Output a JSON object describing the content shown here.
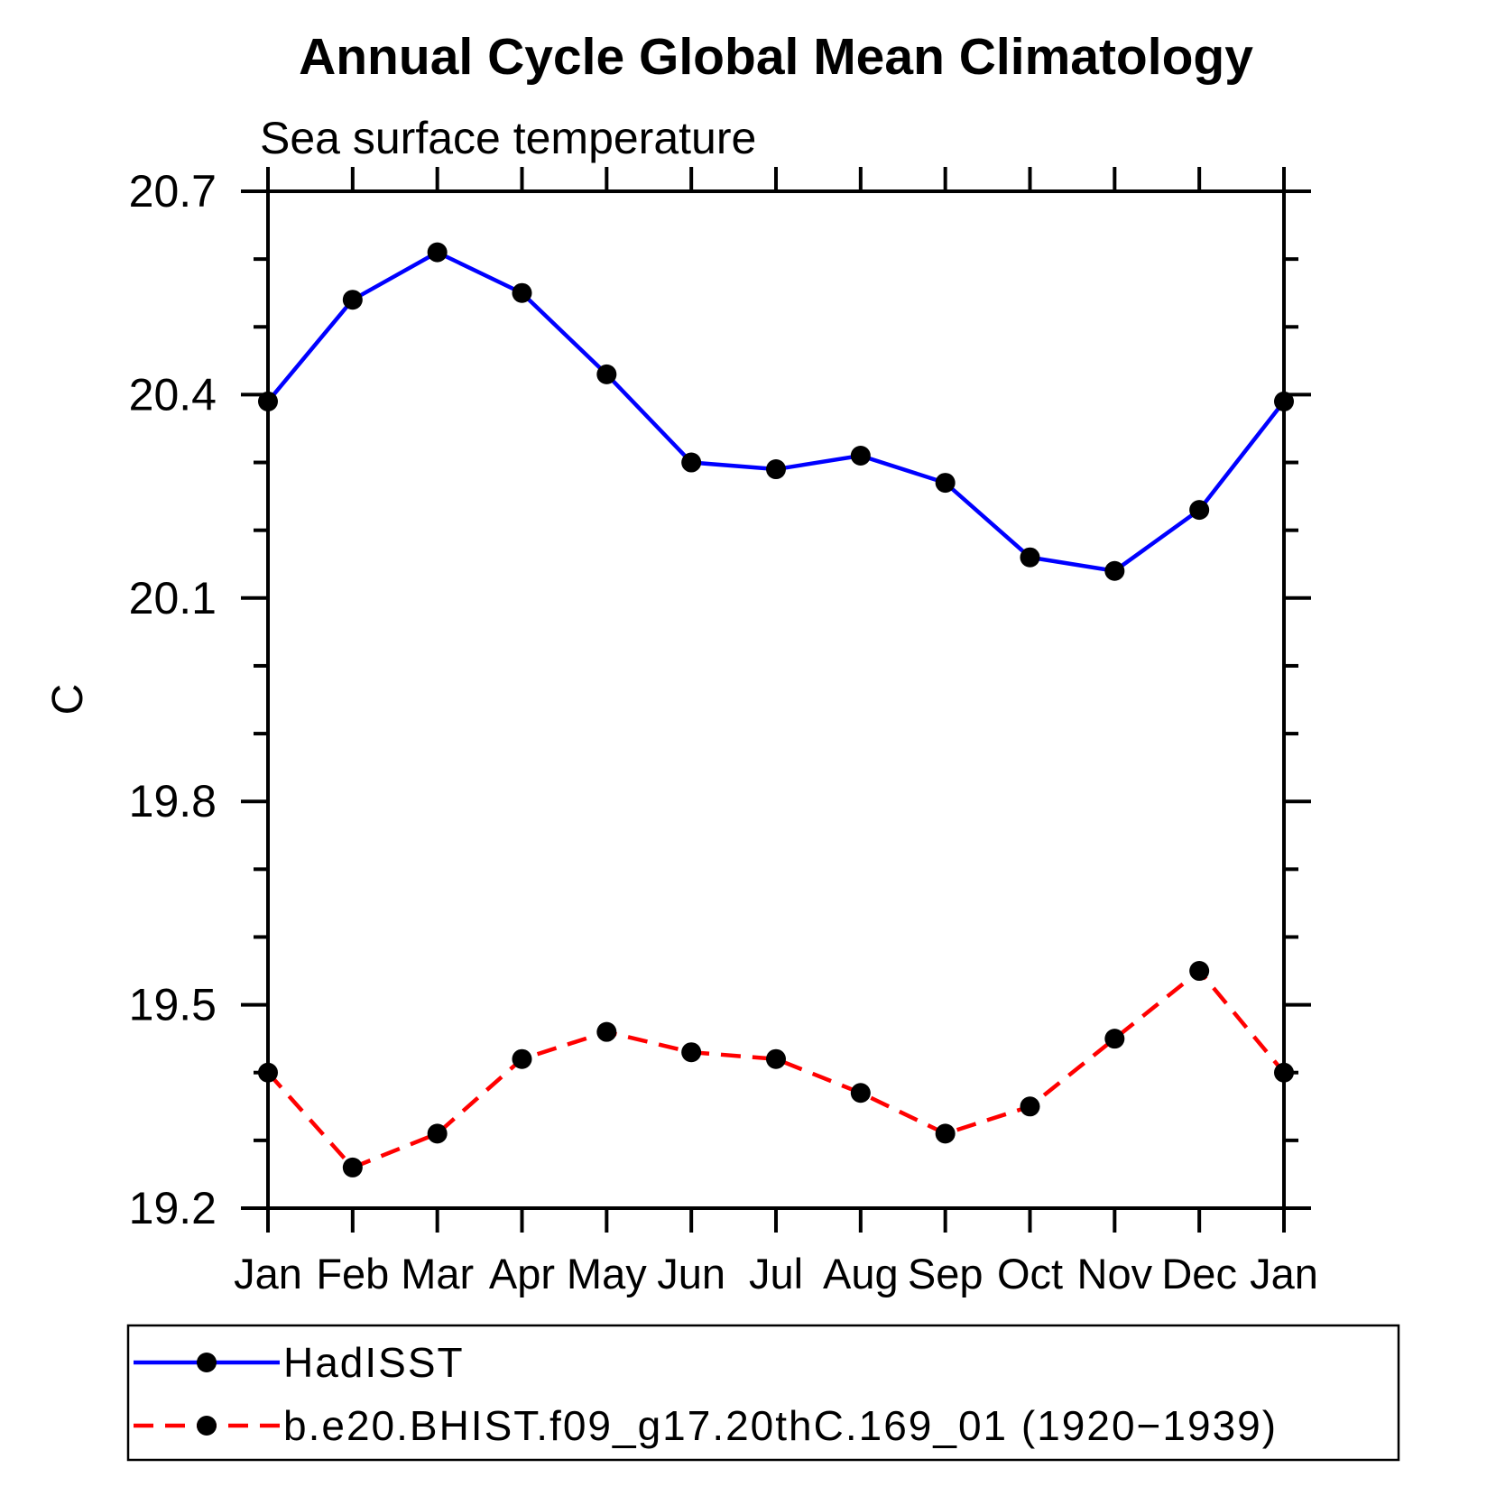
{
  "title": "Annual Cycle Global Mean Climatology",
  "subtitle": "Sea surface temperature",
  "chart_data": {
    "type": "line",
    "title": "Annual Cycle Global Mean Climatology",
    "subtitle": "Sea surface temperature",
    "grid": false,
    "legend_position": "bottom",
    "x": {
      "categories": [
        "Jan",
        "Feb",
        "Mar",
        "Apr",
        "May",
        "Jun",
        "Jul",
        "Aug",
        "Sep",
        "Oct",
        "Nov",
        "Dec",
        "Jan"
      ]
    },
    "y": {
      "label": "C",
      "min": 19.2,
      "max": 20.7,
      "minor_step": 0.1,
      "major_step": 0.3,
      "major_tick_labels": [
        "19.2",
        "19.5",
        "19.8",
        "20.1",
        "20.4",
        "20.7"
      ]
    },
    "series": [
      {
        "name": "HadISST",
        "line_color": "#0000ff",
        "line_style": "solid",
        "marker": "filled-circle",
        "marker_color": "#000000",
        "values": [
          20.39,
          20.54,
          20.61,
          20.55,
          20.43,
          20.3,
          20.29,
          20.31,
          20.27,
          20.16,
          20.14,
          20.23,
          20.39
        ]
      },
      {
        "name": "b.e20.BHIST.f09_g17.20thC.169_01 (1920−1939)",
        "line_color": "#ff0000",
        "line_style": "dashed",
        "marker": "filled-circle",
        "marker_color": "#000000",
        "values": [
          19.4,
          19.26,
          19.31,
          19.42,
          19.46,
          19.43,
          19.42,
          19.37,
          19.31,
          19.35,
          19.45,
          19.55,
          19.4
        ]
      }
    ]
  }
}
